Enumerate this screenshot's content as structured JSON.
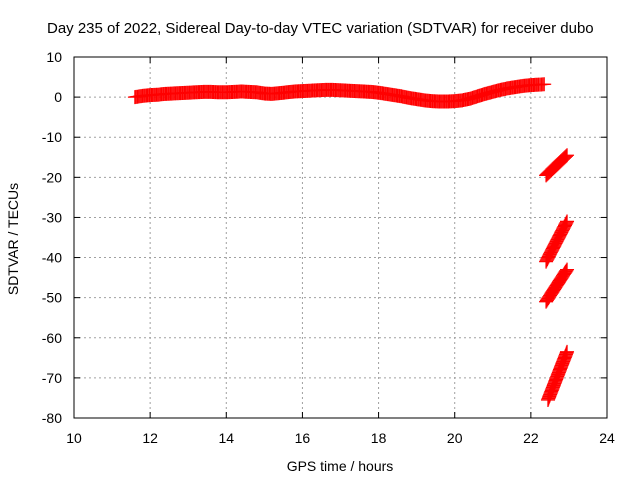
{
  "chart_data": {
    "type": "scatter",
    "title": "Day 235 of 2022, Sidereal Day-to-day VTEC variation (SDTVAR) for receiver dubo",
    "xlabel": "GPS time / hours",
    "ylabel": "SDTVAR / TECUs",
    "xlim": [
      10,
      24
    ],
    "ylim": [
      -80,
      10
    ],
    "xticks": [
      10,
      12,
      14,
      16,
      18,
      20,
      22,
      24
    ],
    "yticks": [
      10,
      0,
      -10,
      -20,
      -30,
      -40,
      -50,
      -60,
      -70,
      -80
    ],
    "grid": true,
    "color": "#ff0000",
    "marker": "plus",
    "series": [
      {
        "x": [
          11.6,
          11.8,
          12.0,
          12.2,
          12.4,
          12.6,
          12.8,
          13.0,
          13.2,
          13.4,
          13.6,
          13.8,
          14.0,
          14.2,
          14.4,
          14.6,
          14.8,
          15.0,
          15.2,
          15.4,
          15.6,
          15.8,
          16.0,
          16.2,
          16.4,
          16.6,
          16.8,
          17.0,
          17.2,
          17.4,
          17.6,
          17.8,
          18.0,
          18.2,
          18.4,
          18.6,
          18.8,
          19.0,
          19.2,
          19.4,
          19.6,
          19.8,
          20.0,
          20.2,
          20.4,
          20.6,
          20.8,
          21.0,
          21.2,
          21.4,
          21.6,
          21.8,
          22.0,
          22.2,
          22.35
        ],
        "y": [
          0.0,
          0.3,
          0.5,
          0.6,
          0.8,
          0.9,
          1.0,
          1.1,
          1.2,
          1.3,
          1.3,
          1.2,
          1.2,
          1.3,
          1.4,
          1.3,
          1.2,
          0.9,
          0.8,
          1.0,
          1.2,
          1.4,
          1.5,
          1.6,
          1.7,
          1.8,
          1.8,
          1.7,
          1.6,
          1.5,
          1.4,
          1.3,
          1.1,
          0.8,
          0.5,
          0.2,
          -0.2,
          -0.5,
          -0.8,
          -1.0,
          -1.1,
          -1.1,
          -1.0,
          -0.8,
          -0.4,
          0.2,
          0.8,
          1.3,
          1.8,
          2.2,
          2.5,
          2.8,
          3.0,
          3.1,
          3.2
        ]
      },
      {
        "x": [
          22.4,
          22.95
        ],
        "y": [
          -19.5,
          -14.5
        ]
      },
      {
        "x": [
          22.4,
          22.95
        ],
        "y": [
          -41.0,
          -31.0
        ]
      },
      {
        "x": [
          22.4,
          22.95
        ],
        "y": [
          -51.0,
          -43.0
        ]
      },
      {
        "x": [
          22.45,
          22.95
        ],
        "y": [
          -75.5,
          -63.5
        ]
      }
    ]
  }
}
